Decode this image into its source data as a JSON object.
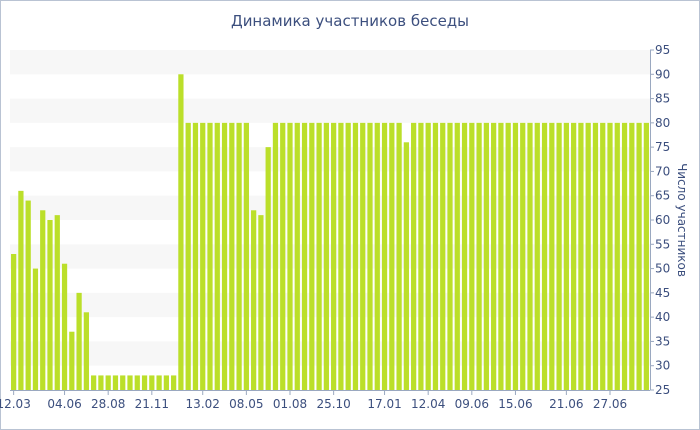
{
  "chart_data": {
    "type": "bar",
    "title": "Динамика участников беседы",
    "xlabel": "",
    "ylabel": "Число участников",
    "ylim": [
      25,
      95
    ],
    "yticks": [
      25,
      30,
      35,
      40,
      45,
      50,
      55,
      60,
      65,
      70,
      75,
      80,
      85,
      90,
      95
    ],
    "y_axis_side": "right",
    "grid": "alternating horizontal bands",
    "bar_color": "#bbdf2a",
    "band_color": "#f7f7f7",
    "text_color": "#3c4f7e",
    "x_tick_labels": [
      {
        "index": 0,
        "label": "12.03"
      },
      {
        "index": 7,
        "label": "04.06"
      },
      {
        "index": 13,
        "label": "28.08"
      },
      {
        "index": 19,
        "label": "21.11"
      },
      {
        "index": 26,
        "label": "13.02"
      },
      {
        "index": 32,
        "label": "08.05"
      },
      {
        "index": 38,
        "label": "01.08"
      },
      {
        "index": 44,
        "label": "25.10"
      },
      {
        "index": 51,
        "label": "17.01"
      },
      {
        "index": 57,
        "label": "12.04"
      },
      {
        "index": 63,
        "label": "09.06"
      },
      {
        "index": 69,
        "label": "15.06"
      },
      {
        "index": 76,
        "label": "21.06"
      },
      {
        "index": 82,
        "label": "27.06"
      }
    ],
    "values": [
      53,
      66,
      64,
      50,
      62,
      60,
      61,
      51,
      37,
      45,
      41,
      28,
      28,
      28,
      28,
      28,
      28,
      28,
      28,
      28,
      28,
      28,
      28,
      90,
      80,
      80,
      80,
      80,
      80,
      80,
      80,
      80,
      80,
      62,
      61,
      75,
      80,
      80,
      80,
      80,
      80,
      80,
      80,
      80,
      80,
      80,
      80,
      80,
      80,
      80,
      80,
      80,
      80,
      80,
      76,
      80,
      80,
      80,
      80,
      80,
      80,
      80,
      80,
      80,
      80,
      80,
      80,
      80,
      80,
      80,
      80,
      80,
      80,
      80,
      80,
      80,
      80,
      80,
      80,
      80,
      80,
      80,
      80,
      80,
      80,
      80,
      80,
      80
    ]
  }
}
